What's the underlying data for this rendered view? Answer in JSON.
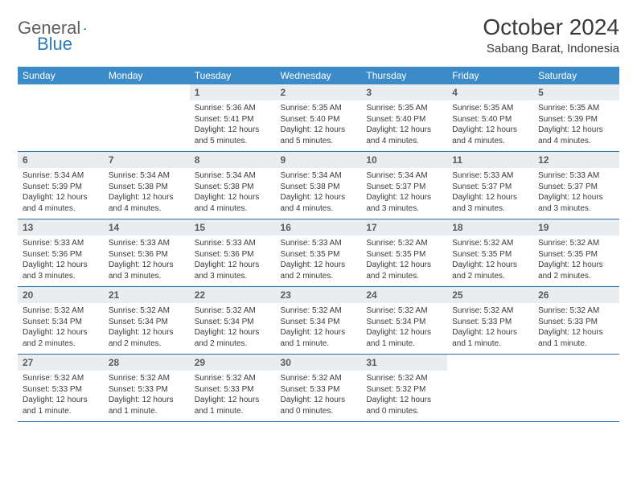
{
  "logo": {
    "text1": "General",
    "text2": "Blue",
    "shape_color": "#2a7ab9"
  },
  "header": {
    "month": "October 2024",
    "location": "Sabang Barat, Indonesia"
  },
  "colors": {
    "header_bg": "#3b8bc9",
    "header_text": "#ffffff",
    "daynum_bg": "#e9edf0",
    "row_border": "#2a6fa8",
    "body_text": "#3a3a3a"
  },
  "day_labels": [
    "Sunday",
    "Monday",
    "Tuesday",
    "Wednesday",
    "Thursday",
    "Friday",
    "Saturday"
  ],
  "weeks": [
    [
      null,
      null,
      {
        "n": "1",
        "sr": "5:36 AM",
        "ss": "5:41 PM",
        "dl": "12 hours and 5 minutes."
      },
      {
        "n": "2",
        "sr": "5:35 AM",
        "ss": "5:40 PM",
        "dl": "12 hours and 5 minutes."
      },
      {
        "n": "3",
        "sr": "5:35 AM",
        "ss": "5:40 PM",
        "dl": "12 hours and 4 minutes."
      },
      {
        "n": "4",
        "sr": "5:35 AM",
        "ss": "5:40 PM",
        "dl": "12 hours and 4 minutes."
      },
      {
        "n": "5",
        "sr": "5:35 AM",
        "ss": "5:39 PM",
        "dl": "12 hours and 4 minutes."
      }
    ],
    [
      {
        "n": "6",
        "sr": "5:34 AM",
        "ss": "5:39 PM",
        "dl": "12 hours and 4 minutes."
      },
      {
        "n": "7",
        "sr": "5:34 AM",
        "ss": "5:38 PM",
        "dl": "12 hours and 4 minutes."
      },
      {
        "n": "8",
        "sr": "5:34 AM",
        "ss": "5:38 PM",
        "dl": "12 hours and 4 minutes."
      },
      {
        "n": "9",
        "sr": "5:34 AM",
        "ss": "5:38 PM",
        "dl": "12 hours and 4 minutes."
      },
      {
        "n": "10",
        "sr": "5:34 AM",
        "ss": "5:37 PM",
        "dl": "12 hours and 3 minutes."
      },
      {
        "n": "11",
        "sr": "5:33 AM",
        "ss": "5:37 PM",
        "dl": "12 hours and 3 minutes."
      },
      {
        "n": "12",
        "sr": "5:33 AM",
        "ss": "5:37 PM",
        "dl": "12 hours and 3 minutes."
      }
    ],
    [
      {
        "n": "13",
        "sr": "5:33 AM",
        "ss": "5:36 PM",
        "dl": "12 hours and 3 minutes."
      },
      {
        "n": "14",
        "sr": "5:33 AM",
        "ss": "5:36 PM",
        "dl": "12 hours and 3 minutes."
      },
      {
        "n": "15",
        "sr": "5:33 AM",
        "ss": "5:36 PM",
        "dl": "12 hours and 3 minutes."
      },
      {
        "n": "16",
        "sr": "5:33 AM",
        "ss": "5:35 PM",
        "dl": "12 hours and 2 minutes."
      },
      {
        "n": "17",
        "sr": "5:32 AM",
        "ss": "5:35 PM",
        "dl": "12 hours and 2 minutes."
      },
      {
        "n": "18",
        "sr": "5:32 AM",
        "ss": "5:35 PM",
        "dl": "12 hours and 2 minutes."
      },
      {
        "n": "19",
        "sr": "5:32 AM",
        "ss": "5:35 PM",
        "dl": "12 hours and 2 minutes."
      }
    ],
    [
      {
        "n": "20",
        "sr": "5:32 AM",
        "ss": "5:34 PM",
        "dl": "12 hours and 2 minutes."
      },
      {
        "n": "21",
        "sr": "5:32 AM",
        "ss": "5:34 PM",
        "dl": "12 hours and 2 minutes."
      },
      {
        "n": "22",
        "sr": "5:32 AM",
        "ss": "5:34 PM",
        "dl": "12 hours and 2 minutes."
      },
      {
        "n": "23",
        "sr": "5:32 AM",
        "ss": "5:34 PM",
        "dl": "12 hours and 1 minute."
      },
      {
        "n": "24",
        "sr": "5:32 AM",
        "ss": "5:34 PM",
        "dl": "12 hours and 1 minute."
      },
      {
        "n": "25",
        "sr": "5:32 AM",
        "ss": "5:33 PM",
        "dl": "12 hours and 1 minute."
      },
      {
        "n": "26",
        "sr": "5:32 AM",
        "ss": "5:33 PM",
        "dl": "12 hours and 1 minute."
      }
    ],
    [
      {
        "n": "27",
        "sr": "5:32 AM",
        "ss": "5:33 PM",
        "dl": "12 hours and 1 minute."
      },
      {
        "n": "28",
        "sr": "5:32 AM",
        "ss": "5:33 PM",
        "dl": "12 hours and 1 minute."
      },
      {
        "n": "29",
        "sr": "5:32 AM",
        "ss": "5:33 PM",
        "dl": "12 hours and 1 minute."
      },
      {
        "n": "30",
        "sr": "5:32 AM",
        "ss": "5:33 PM",
        "dl": "12 hours and 0 minutes."
      },
      {
        "n": "31",
        "sr": "5:32 AM",
        "ss": "5:32 PM",
        "dl": "12 hours and 0 minutes."
      },
      null,
      null
    ]
  ],
  "labels": {
    "sunrise": "Sunrise:",
    "sunset": "Sunset:",
    "daylight": "Daylight:"
  }
}
